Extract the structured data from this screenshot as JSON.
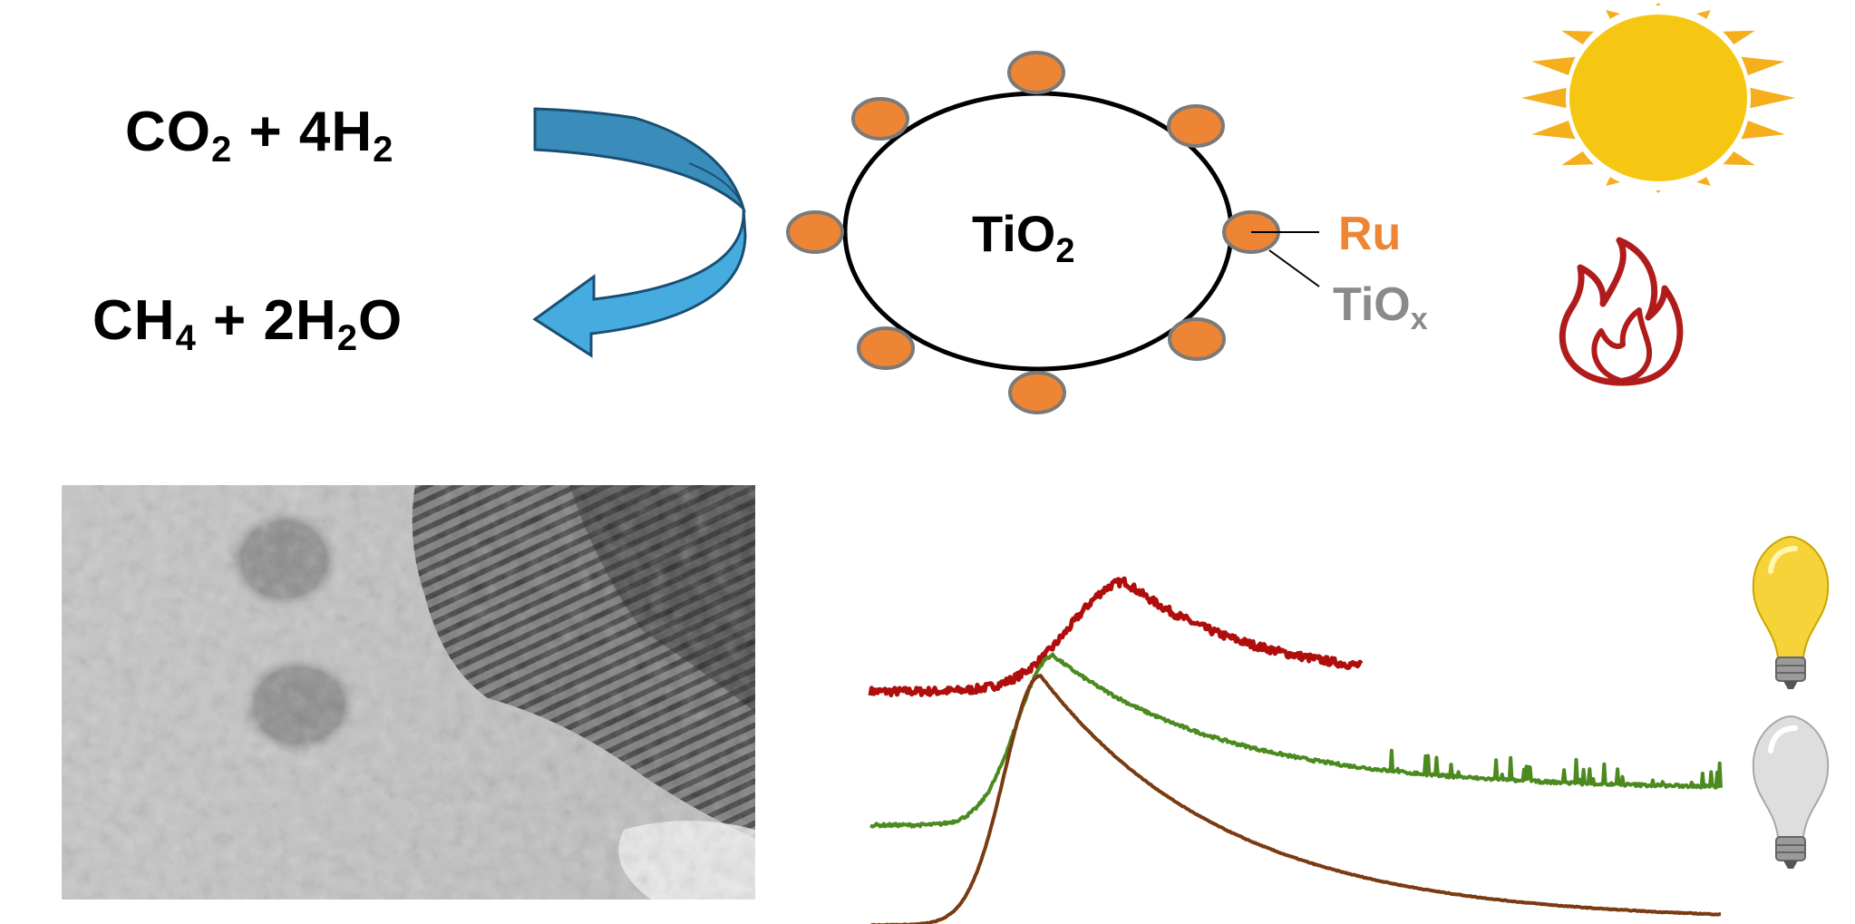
{
  "reaction": {
    "reactants": {
      "a": "CO",
      "a_sub": "2",
      "plus": " + 4H",
      "b_sub": "2"
    },
    "products": {
      "a": "CH",
      "a_sub": "4",
      "plus": " + 2H",
      "b_sub": "2",
      "tail": "O"
    }
  },
  "particle": {
    "support_label": "TiO",
    "support_sub": "2",
    "metal_label": "Ru",
    "overlayer_label": "TiO",
    "overlayer_sub": "x"
  },
  "icons": [
    "sun-icon",
    "flame-icon",
    "lit-bulb-icon",
    "unlit-bulb-icon",
    "curved-arrow-icon"
  ],
  "colors": {
    "arrow": "#3aa0d8",
    "ru": "#ee8534",
    "tiox": "#8a8a8a",
    "sun": "#f6c712",
    "sun_rays": "#f5ae1c",
    "flame": "#b01c1c",
    "spectrum_top": "#b00d0d",
    "spectrum_middle": "#4b8a1f",
    "spectrum_bottom": "#7a3a12",
    "bulb_on": "#f7d33a",
    "bulb_off": "#d9d9d9"
  },
  "chart_data": {
    "type": "line",
    "series": [
      {
        "color": "#b00d0d",
        "baseline": 0.17,
        "peak": 0.72,
        "peak_x": 0.3,
        "tail": 0.22,
        "noise": "high"
      },
      {
        "color": "#4b8a1f",
        "baseline": -0.5,
        "peak": 0.35,
        "peak_x": 0.215,
        "tail": -0.32,
        "noise": "medium"
      },
      {
        "color": "#7a3a12",
        "baseline": -1.0,
        "peak": 0.25,
        "peak_x": 0.2,
        "tail": -0.98,
        "noise": "low"
      }
    ]
  }
}
